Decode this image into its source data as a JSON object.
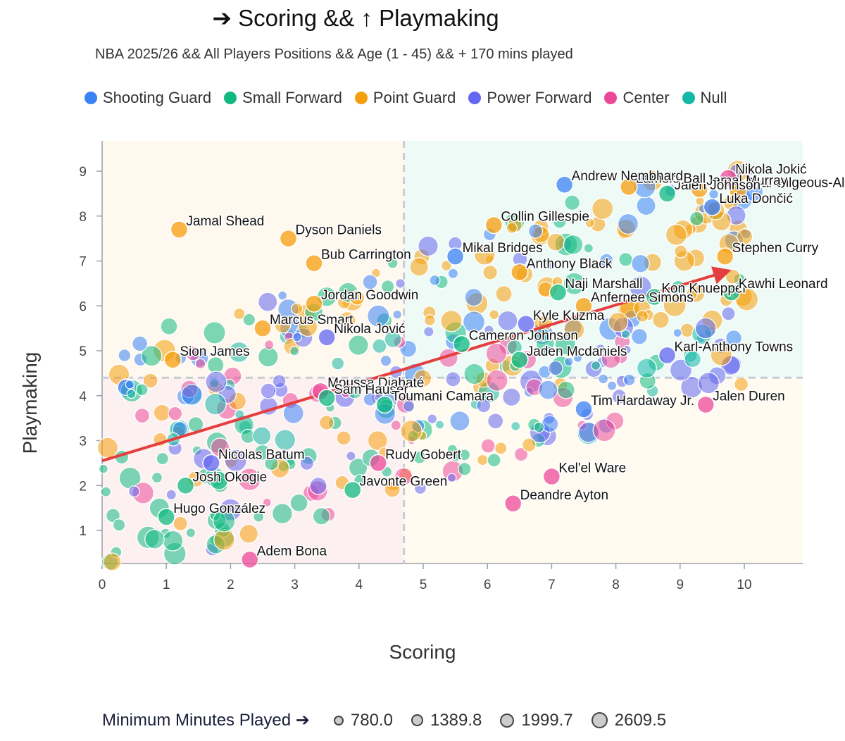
{
  "header": {
    "title": "➔ Scoring && ↑ Playmaking",
    "subtitle": "NBA 2025/26 && All Players Positions && Age (1 - 45) && + 170 mins played"
  },
  "legend": {
    "items": [
      {
        "label": "Shooting Guard",
        "color": "#3b82f6"
      },
      {
        "label": "Small Forward",
        "color": "#10b981"
      },
      {
        "label": "Point Guard",
        "color": "#f59e0b"
      },
      {
        "label": "Power Forward",
        "color": "#6366f1"
      },
      {
        "label": "Center",
        "color": "#ec4899"
      },
      {
        "label": "Null",
        "color": "#14b8a6"
      }
    ]
  },
  "size_legend": {
    "label": "Minimum Minutes Played ➔",
    "values": [
      "780.0",
      "1389.8",
      "1999.7",
      "2609.5"
    ]
  },
  "chart_data": {
    "type": "scatter",
    "title": "➔ Scoring && ↑ Playmaking",
    "xlabel": "Scoring",
    "ylabel": "Playmaking",
    "xlim": [
      0,
      10.9
    ],
    "ylim": [
      0.25,
      9.6
    ],
    "xticks": [
      "0",
      "1",
      "2",
      "3",
      "4",
      "5",
      "6",
      "7",
      "8",
      "9",
      "10"
    ],
    "yticks": [
      "1",
      "2",
      "3",
      "4",
      "5",
      "6",
      "7",
      "8",
      "9"
    ],
    "quadrant_split": {
      "x": 4.7,
      "y": 4.4
    },
    "trend_line": {
      "x": [
        0,
        9.8
      ],
      "y": [
        2.55,
        6.8
      ]
    },
    "named_points": [
      {
        "name": "Nikola Jokić",
        "x": 9.75,
        "y": 8.85,
        "pos": "Center"
      },
      {
        "name": "Shai Gilgeous-Alexander",
        "x": 9.9,
        "y": 8.55,
        "pos": "Point Guard"
      },
      {
        "name": "Jamal Murray",
        "x": 9.3,
        "y": 8.6,
        "pos": "Point Guard"
      },
      {
        "name": "Jalen Johnson",
        "x": 8.8,
        "y": 8.5,
        "pos": "Small Forward"
      },
      {
        "name": "Lamelo Ball",
        "x": 8.2,
        "y": 8.65,
        "pos": "Point Guard"
      },
      {
        "name": "Andrew Nembhard",
        "x": 7.2,
        "y": 8.7,
        "pos": "Shooting Guard"
      },
      {
        "name": "Luka Dončić",
        "x": 9.5,
        "y": 8.2,
        "pos": "Shooting Guard"
      },
      {
        "name": "Collin Gillespie",
        "x": 6.1,
        "y": 7.8,
        "pos": "Point Guard"
      },
      {
        "name": "Mikal Bridges",
        "x": 5.5,
        "y": 7.1,
        "pos": "Shooting Guard"
      },
      {
        "name": "Stephen Curry",
        "x": 9.7,
        "y": 7.1,
        "pos": "Point Guard"
      },
      {
        "name": "Anthony Black",
        "x": 6.5,
        "y": 6.75,
        "pos": "Point Guard"
      },
      {
        "name": "Naji Marshall",
        "x": 7.1,
        "y": 6.3,
        "pos": "Small Forward"
      },
      {
        "name": "Kon Knueppel",
        "x": 8.6,
        "y": 6.2,
        "pos": "Small Forward"
      },
      {
        "name": "Kawhi Leonard",
        "x": 9.8,
        "y": 6.3,
        "pos": "Small Forward"
      },
      {
        "name": "Anfernee Simons",
        "x": 7.5,
        "y": 6.0,
        "pos": "Point Guard"
      },
      {
        "name": "Kyle Kuzma",
        "x": 6.6,
        "y": 5.6,
        "pos": "Power Forward"
      },
      {
        "name": "Cameron Johnson",
        "x": 5.6,
        "y": 5.15,
        "pos": "Small Forward"
      },
      {
        "name": "Jaden Mcdaniels",
        "x": 6.5,
        "y": 4.8,
        "pos": "Small Forward"
      },
      {
        "name": "Karl-Anthony Towns",
        "x": 8.8,
        "y": 4.9,
        "pos": "Power Forward"
      },
      {
        "name": "Jamal Shead",
        "x": 1.2,
        "y": 7.7,
        "pos": "Point Guard"
      },
      {
        "name": "Dyson Daniels",
        "x": 2.9,
        "y": 7.5,
        "pos": "Point Guard"
      },
      {
        "name": "Bub Carrington",
        "x": 3.3,
        "y": 6.95,
        "pos": "Point Guard"
      },
      {
        "name": "Jordan Goodwin",
        "x": 3.3,
        "y": 6.05,
        "pos": "Point Guard"
      },
      {
        "name": "Marcus Smart",
        "x": 2.5,
        "y": 5.5,
        "pos": "Point Guard"
      },
      {
        "name": "Nikola Jović",
        "x": 3.5,
        "y": 5.3,
        "pos": "Power Forward"
      },
      {
        "name": "Sion James",
        "x": 1.1,
        "y": 4.8,
        "pos": "Point Guard"
      },
      {
        "name": "Moussa Diabaté",
        "x": 3.4,
        "y": 4.1,
        "pos": "Center"
      },
      {
        "name": "Sam Hauser",
        "x": 3.5,
        "y": 3.95,
        "pos": "Small Forward"
      },
      {
        "name": "Toumani Camara",
        "x": 4.4,
        "y": 3.8,
        "pos": "Small Forward"
      },
      {
        "name": "Tim Hardaway Jr.",
        "x": 7.5,
        "y": 3.7,
        "pos": "Shooting Guard"
      },
      {
        "name": "Jalen Duren",
        "x": 9.4,
        "y": 3.8,
        "pos": "Center"
      },
      {
        "name": "Rudy Gobert",
        "x": 4.3,
        "y": 2.5,
        "pos": "Center"
      },
      {
        "name": "Nicolas Batum",
        "x": 1.7,
        "y": 2.5,
        "pos": "Power Forward"
      },
      {
        "name": "Kel'el Ware",
        "x": 7.0,
        "y": 2.2,
        "pos": "Center"
      },
      {
        "name": "Josh Okogie",
        "x": 1.3,
        "y": 2.0,
        "pos": "Small Forward"
      },
      {
        "name": "Javonte Green",
        "x": 3.9,
        "y": 1.9,
        "pos": "Small Forward"
      },
      {
        "name": "Deandre Ayton",
        "x": 6.4,
        "y": 1.6,
        "pos": "Center"
      },
      {
        "name": "Hugo González",
        "x": 1.0,
        "y": 1.3,
        "pos": "Small Forward"
      },
      {
        "name": "Adem Bona",
        "x": 2.3,
        "y": 0.35,
        "pos": "Center"
      }
    ]
  }
}
